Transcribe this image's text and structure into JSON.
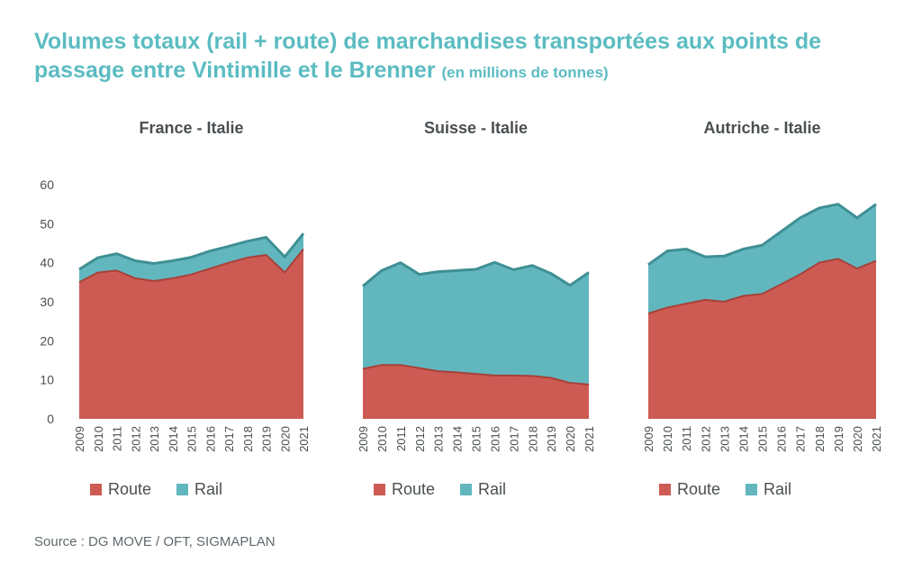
{
  "title": {
    "main": "Volumes totaux (rail + route) de marchandises transportées aux points de passage entre Vintimille et le Brenner",
    "unit": "(en millions de tonnes)"
  },
  "source": "Source : DG MOVE / OFT, SIGMAPLAN",
  "colors": {
    "title": "#5bbcc1",
    "route": "#cd5b53",
    "rail": "#62b7bf",
    "rail_top_line": "#3f8f93",
    "route_top_line": "#a8413a",
    "text": "#4a4f52"
  },
  "chart_data": [
    {
      "type": "area",
      "stacked": true,
      "title": "France - Italie",
      "x": [
        "2009",
        "2010",
        "2011",
        "2012",
        "2013",
        "2014",
        "2015",
        "2016",
        "2017",
        "2018",
        "2019",
        "2020",
        "2021"
      ],
      "series": [
        {
          "name": "Route",
          "values": [
            35,
            37.5,
            38,
            36,
            35.3,
            36,
            37,
            38.5,
            40,
            41.3,
            42,
            37.5,
            43.5
          ]
        },
        {
          "name": "Rail",
          "values": [
            3.3,
            3.8,
            4.3,
            4.5,
            4.5,
            4.5,
            4.4,
            4.5,
            4.2,
            4.2,
            4.5,
            4,
            4
          ]
        }
      ],
      "ylim": [
        0,
        60
      ],
      "yticks": [
        0,
        10,
        20,
        30,
        40,
        50,
        60
      ],
      "show_y_axis": true,
      "grid": false,
      "legend": [
        "Route",
        "Rail"
      ],
      "legend_position": "bottom"
    },
    {
      "type": "area",
      "stacked": true,
      "title": "Suisse - Italie",
      "x": [
        "2009",
        "2010",
        "2011",
        "2012",
        "2013",
        "2014",
        "2015",
        "2016",
        "2017",
        "2018",
        "2019",
        "2020",
        "2021"
      ],
      "series": [
        {
          "name": "Route",
          "values": [
            12.8,
            13.8,
            13.8,
            13,
            12.2,
            11.9,
            11.5,
            11.1,
            11.1,
            11,
            10.5,
            9.2,
            8.8
          ]
        },
        {
          "name": "Rail",
          "values": [
            21.2,
            24.2,
            26.2,
            24,
            25.5,
            26.1,
            26.8,
            29,
            27.1,
            28.3,
            26.7,
            25,
            28.7
          ]
        }
      ],
      "ylim": [
        0,
        60
      ],
      "show_y_axis": false,
      "grid": false,
      "legend": [
        "Route",
        "Rail"
      ],
      "legend_position": "bottom"
    },
    {
      "type": "area",
      "stacked": true,
      "title": "Autriche - Italie",
      "x": [
        "2009",
        "2010",
        "2011",
        "2012",
        "2013",
        "2014",
        "2015",
        "2016",
        "2017",
        "2018",
        "2019",
        "2020",
        "2021"
      ],
      "series": [
        {
          "name": "Route",
          "values": [
            27,
            28.5,
            29.5,
            30.5,
            30,
            31.5,
            32,
            34.5,
            37,
            40,
            41,
            38.5,
            40.5
          ]
        },
        {
          "name": "Rail",
          "values": [
            12.5,
            14.5,
            14,
            11,
            11.7,
            12,
            12.5,
            13.5,
            14.5,
            14,
            14,
            13,
            14.5
          ]
        }
      ],
      "ylim": [
        0,
        60
      ],
      "show_y_axis": false,
      "grid": false,
      "legend": [
        "Route",
        "Rail"
      ],
      "legend_position": "bottom"
    }
  ]
}
